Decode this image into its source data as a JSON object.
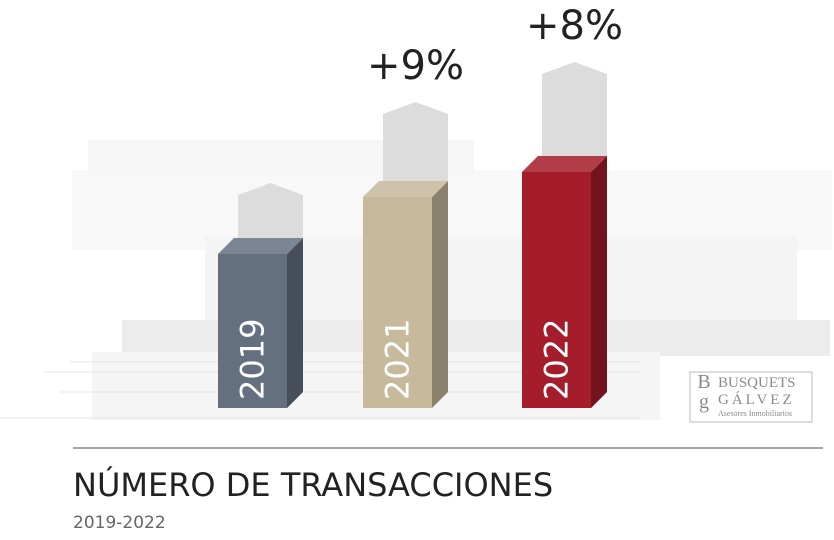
{
  "chart_data": {
    "type": "bar3d",
    "title": "NÚMERO DE TRANSACCIONES",
    "subtitle": "2019-2022",
    "categories": [
      "2019",
      "2021",
      "2022"
    ],
    "values": [
      154,
      211,
      236
    ],
    "colors": [
      "#647080",
      "#c6b99c",
      "#a51c2a"
    ],
    "ylim": [
      0,
      250
    ],
    "annotations": [
      null,
      "+9%",
      "+8%"
    ]
  },
  "logo": {
    "initials_top": "B",
    "initials_bottom": "g",
    "name_top": "BUSQUETS",
    "name_bottom": "GÁLVEZ",
    "tagline": "Asesores Inmobiliarios"
  }
}
